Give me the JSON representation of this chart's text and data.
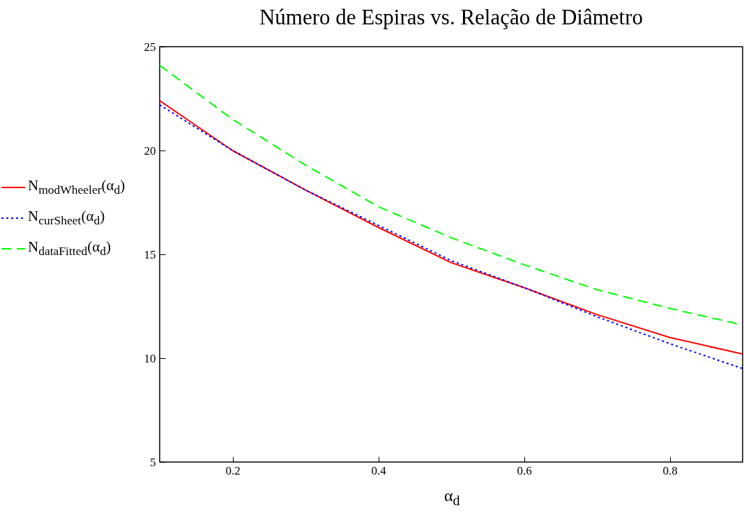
{
  "chart_data": {
    "type": "line",
    "title": "Número de Espiras vs. Relação de Diâmetro",
    "xlabel": "α$_{d}$",
    "x": [
      0.1,
      0.2,
      0.3,
      0.4,
      0.5,
      0.6,
      0.7,
      0.8,
      0.9
    ],
    "series": [
      {
        "name": "N$_{modWheeler}$(α$_{d}$)",
        "color": "#ff0000",
        "line_style": "solid",
        "values": [
          22.4,
          20.0,
          18.1,
          16.3,
          14.6,
          13.4,
          12.1,
          11.0,
          10.2
        ]
      },
      {
        "name": "N$_{curSheet}$(α$_{d}$)",
        "color": "#0000ff",
        "line_style": "dotted",
        "values": [
          22.2,
          20.0,
          18.1,
          16.4,
          14.7,
          13.4,
          12.0,
          10.7,
          9.5
        ]
      },
      {
        "name": "N$_{dataFitted}$(α$_{d}$)",
        "color": "#00ff00",
        "line_style": "dashed",
        "values": [
          24.1,
          21.5,
          19.3,
          17.3,
          15.8,
          14.5,
          13.3,
          12.4,
          11.6
        ]
      }
    ],
    "xlim": [
      0.1,
      0.9
    ],
    "xticks": [
      {
        "value": 0.2,
        "label": "0.2"
      },
      {
        "value": 0.4,
        "label": "0.4"
      },
      {
        "value": 0.6,
        "label": "0.6"
      },
      {
        "value": 0.8,
        "label": "0.8"
      }
    ],
    "ylim": [
      5,
      25
    ],
    "yticks": [
      5,
      10,
      15,
      20,
      25
    ],
    "grid": false,
    "legend": "left"
  }
}
